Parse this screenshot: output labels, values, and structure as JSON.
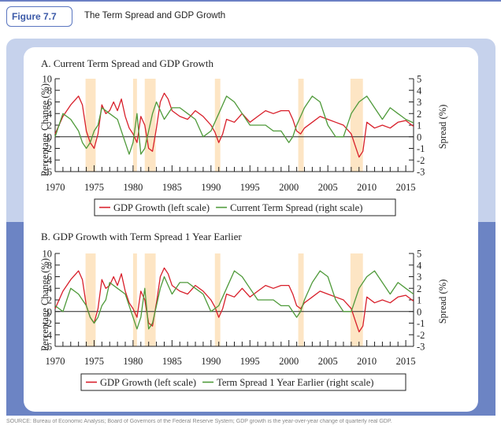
{
  "header": {
    "figure_label": "Figure 7.7",
    "title": "The Term Spread and GDP Growth"
  },
  "footer": {
    "source_text": "SOURCE: Bureau of Economic Analysis; Board of Governors of the Federal Reserve System; GDP growth is the year-over-year change of quarterly real GDP."
  },
  "colors": {
    "gdp": "#d81f2a",
    "spread": "#4f9a3a",
    "recession": "#fde5c4",
    "axis": "#222222"
  },
  "chart_data": [
    {
      "type": "line",
      "title": "A. Current Term Spread and GDP Growth",
      "ylabel_left": "Percentage Change (%)",
      "ylabel_right": "Spread (%)",
      "ylim_left": [
        -6,
        10
      ],
      "ylim_right": [
        -3,
        5
      ],
      "xlim": [
        1970,
        2016
      ],
      "x_ticks": [
        1970,
        1975,
        1980,
        1985,
        1990,
        1995,
        2000,
        2005,
        2010,
        2015
      ],
      "y_ticks_left": [
        -6,
        -4,
        -2,
        0,
        2,
        4,
        6,
        8,
        10
      ],
      "y_ticks_right": [
        -3,
        -2,
        -1,
        0,
        1,
        2,
        3,
        4,
        5
      ],
      "recessions": [
        [
          1973.9,
          1975.2
        ],
        [
          1980.0,
          1980.5
        ],
        [
          1981.5,
          1982.9
        ],
        [
          1990.5,
          1991.2
        ],
        [
          2001.2,
          2001.9
        ],
        [
          2007.9,
          2009.5
        ]
      ],
      "legend": [
        "GDP Growth (left scale)",
        "Current Term Spread (right scale)"
      ],
      "series": [
        {
          "name": "GDP Growth (left scale)",
          "axis": "left",
          "points": [
            [
              1970,
              0.5
            ],
            [
              1971,
              3.5
            ],
            [
              1972,
              5.5
            ],
            [
              1973,
              7.0
            ],
            [
              1973.5,
              5.5
            ],
            [
              1974,
              1.0
            ],
            [
              1974.5,
              -1.0
            ],
            [
              1975,
              -2.0
            ],
            [
              1975.5,
              0.5
            ],
            [
              1976,
              5.5
            ],
            [
              1976.5,
              4.0
            ],
            [
              1977,
              4.5
            ],
            [
              1977.5,
              6.0
            ],
            [
              1978,
              4.5
            ],
            [
              1978.5,
              6.5
            ],
            [
              1979,
              3.5
            ],
            [
              1979.5,
              1.5
            ],
            [
              1980,
              0.5
            ],
            [
              1980.5,
              -1.0
            ],
            [
              1981,
              3.5
            ],
            [
              1981.5,
              2.0
            ],
            [
              1982,
              -2.0
            ],
            [
              1982.5,
              -2.5
            ],
            [
              1983,
              1.5
            ],
            [
              1983.5,
              6.0
            ],
            [
              1984,
              7.5
            ],
            [
              1984.5,
              6.5
            ],
            [
              1985,
              4.5
            ],
            [
              1986,
              3.5
            ],
            [
              1987,
              3.0
            ],
            [
              1988,
              4.5
            ],
            [
              1989,
              3.5
            ],
            [
              1990,
              2.0
            ],
            [
              1990.5,
              0.8
            ],
            [
              1991,
              -1.0
            ],
            [
              1991.5,
              0.5
            ],
            [
              1992,
              3.0
            ],
            [
              1993,
              2.5
            ],
            [
              1994,
              4.0
            ],
            [
              1995,
              2.5
            ],
            [
              1996,
              3.5
            ],
            [
              1997,
              4.5
            ],
            [
              1998,
              4.0
            ],
            [
              1999,
              4.5
            ],
            [
              2000,
              4.5
            ],
            [
              2000.5,
              3.0
            ],
            [
              2001,
              1.0
            ],
            [
              2001.5,
              0.5
            ],
            [
              2002,
              1.5
            ],
            [
              2003,
              2.5
            ],
            [
              2004,
              3.5
            ],
            [
              2005,
              3.0
            ],
            [
              2006,
              2.5
            ],
            [
              2007,
              2.0
            ],
            [
              2008,
              0.5
            ],
            [
              2008.5,
              -1.5
            ],
            [
              2009,
              -3.5
            ],
            [
              2009.5,
              -2.5
            ],
            [
              2010,
              2.5
            ],
            [
              2011,
              1.5
            ],
            [
              2012,
              2.0
            ],
            [
              2013,
              1.5
            ],
            [
              2014,
              2.5
            ],
            [
              2015,
              2.8
            ],
            [
              2016,
              1.8
            ]
          ]
        },
        {
          "name": "Current Term Spread (right scale)",
          "axis": "right",
          "points": [
            [
              1970,
              0.0
            ],
            [
              1970.5,
              1.0
            ],
            [
              1971,
              2.0
            ],
            [
              1972,
              1.5
            ],
            [
              1973,
              0.5
            ],
            [
              1973.5,
              -0.5
            ],
            [
              1974,
              -1.0
            ],
            [
              1974.5,
              -0.5
            ],
            [
              1975,
              0.5
            ],
            [
              1975.5,
              1.0
            ],
            [
              1976,
              2.5
            ],
            [
              1977,
              2.0
            ],
            [
              1978,
              1.5
            ],
            [
              1978.5,
              0.5
            ],
            [
              1979,
              -0.5
            ],
            [
              1979.5,
              -1.5
            ],
            [
              1980,
              -0.5
            ],
            [
              1980.5,
              2.0
            ],
            [
              1981,
              -1.5
            ],
            [
              1981.5,
              -1.0
            ],
            [
              1982,
              0.5
            ],
            [
              1982.5,
              2.0
            ],
            [
              1983,
              3.0
            ],
            [
              1984,
              1.5
            ],
            [
              1985,
              2.5
            ],
            [
              1986,
              2.5
            ],
            [
              1987,
              2.0
            ],
            [
              1988,
              1.5
            ],
            [
              1989,
              0.0
            ],
            [
              1990,
              0.5
            ],
            [
              1991,
              2.0
            ],
            [
              1992,
              3.5
            ],
            [
              1993,
              3.0
            ],
            [
              1994,
              2.0
            ],
            [
              1995,
              1.0
            ],
            [
              1996,
              1.0
            ],
            [
              1997,
              1.0
            ],
            [
              1998,
              0.5
            ],
            [
              1999,
              0.5
            ],
            [
              2000,
              -0.5
            ],
            [
              2000.5,
              0.0
            ],
            [
              2001,
              1.0
            ],
            [
              2002,
              2.5
            ],
            [
              2003,
              3.5
            ],
            [
              2004,
              3.0
            ],
            [
              2005,
              1.0
            ],
            [
              2006,
              0.0
            ],
            [
              2007,
              0.0
            ],
            [
              2008,
              2.0
            ],
            [
              2009,
              3.0
            ],
            [
              2010,
              3.5
            ],
            [
              2011,
              2.5
            ],
            [
              2012,
              1.5
            ],
            [
              2013,
              2.5
            ],
            [
              2014,
              2.0
            ],
            [
              2015,
              1.5
            ],
            [
              2016,
              1.2
            ]
          ]
        }
      ]
    },
    {
      "type": "line",
      "title": "B. GDP Growth with Term Spread 1 Year Earlier",
      "ylabel_left": "Percentage Change (%)",
      "ylabel_right": "Spread (%)",
      "ylim_left": [
        -6,
        10
      ],
      "ylim_right": [
        -3,
        5
      ],
      "xlim": [
        1970,
        2016
      ],
      "x_ticks": [
        1970,
        1975,
        1980,
        1985,
        1990,
        1995,
        2000,
        2005,
        2010,
        2015
      ],
      "y_ticks_left": [
        -6,
        -4,
        -2,
        0,
        2,
        4,
        6,
        8,
        10
      ],
      "y_ticks_right": [
        -3,
        -2,
        -1,
        0,
        1,
        2,
        3,
        4,
        5
      ],
      "recessions": [
        [
          1973.9,
          1975.2
        ],
        [
          1980.0,
          1980.5
        ],
        [
          1981.5,
          1982.9
        ],
        [
          1990.5,
          1991.2
        ],
        [
          2001.2,
          2001.9
        ],
        [
          2007.9,
          2009.5
        ]
      ],
      "legend": [
        "GDP Growth (left scale)",
        "Term Spread 1 Year Earlier (right scale)"
      ],
      "series": [
        {
          "name": "GDP Growth (left scale)",
          "axis": "left",
          "points": [
            [
              1970,
              0.5
            ],
            [
              1971,
              3.5
            ],
            [
              1972,
              5.5
            ],
            [
              1973,
              7.0
            ],
            [
              1973.5,
              5.5
            ],
            [
              1974,
              1.0
            ],
            [
              1974.5,
              -1.0
            ],
            [
              1975,
              -2.0
            ],
            [
              1975.5,
              0.5
            ],
            [
              1976,
              5.5
            ],
            [
              1976.5,
              4.0
            ],
            [
              1977,
              4.5
            ],
            [
              1977.5,
              6.0
            ],
            [
              1978,
              4.5
            ],
            [
              1978.5,
              6.5
            ],
            [
              1979,
              3.5
            ],
            [
              1979.5,
              1.5
            ],
            [
              1980,
              0.5
            ],
            [
              1980.5,
              -1.0
            ],
            [
              1981,
              3.5
            ],
            [
              1981.5,
              2.0
            ],
            [
              1982,
              -2.0
            ],
            [
              1982.5,
              -2.5
            ],
            [
              1983,
              1.5
            ],
            [
              1983.5,
              6.0
            ],
            [
              1984,
              7.5
            ],
            [
              1984.5,
              6.5
            ],
            [
              1985,
              4.5
            ],
            [
              1986,
              3.5
            ],
            [
              1987,
              3.0
            ],
            [
              1988,
              4.5
            ],
            [
              1989,
              3.5
            ],
            [
              1990,
              2.0
            ],
            [
              1990.5,
              0.8
            ],
            [
              1991,
              -1.0
            ],
            [
              1991.5,
              0.5
            ],
            [
              1992,
              3.0
            ],
            [
              1993,
              2.5
            ],
            [
              1994,
              4.0
            ],
            [
              1995,
              2.5
            ],
            [
              1996,
              3.5
            ],
            [
              1997,
              4.5
            ],
            [
              1998,
              4.0
            ],
            [
              1999,
              4.5
            ],
            [
              2000,
              4.5
            ],
            [
              2000.5,
              3.0
            ],
            [
              2001,
              1.0
            ],
            [
              2001.5,
              0.5
            ],
            [
              2002,
              1.5
            ],
            [
              2003,
              2.5
            ],
            [
              2004,
              3.5
            ],
            [
              2005,
              3.0
            ],
            [
              2006,
              2.5
            ],
            [
              2007,
              2.0
            ],
            [
              2008,
              0.5
            ],
            [
              2008.5,
              -1.5
            ],
            [
              2009,
              -3.5
            ],
            [
              2009.5,
              -2.5
            ],
            [
              2010,
              2.5
            ],
            [
              2011,
              1.5
            ],
            [
              2012,
              2.0
            ],
            [
              2013,
              1.5
            ],
            [
              2014,
              2.5
            ],
            [
              2015,
              2.8
            ],
            [
              2016,
              1.8
            ]
          ]
        },
        {
          "name": "Term Spread 1 Year Earlier (right scale)",
          "axis": "right",
          "points": [
            [
              1970,
              0.5
            ],
            [
              1971,
              0.0
            ],
            [
              1971.5,
              1.0
            ],
            [
              1972,
              2.0
            ],
            [
              1973,
              1.5
            ],
            [
              1974,
              0.5
            ],
            [
              1974.5,
              -0.5
            ],
            [
              1975,
              -1.0
            ],
            [
              1975.5,
              -0.5
            ],
            [
              1976,
              0.5
            ],
            [
              1976.5,
              1.0
            ],
            [
              1977,
              2.5
            ],
            [
              1978,
              2.0
            ],
            [
              1979,
              1.5
            ],
            [
              1979.5,
              0.5
            ],
            [
              1980,
              -0.5
            ],
            [
              1980.5,
              -1.5
            ],
            [
              1981,
              -0.5
            ],
            [
              1981.5,
              2.0
            ],
            [
              1982,
              -1.5
            ],
            [
              1982.5,
              -1.0
            ],
            [
              1983,
              0.5
            ],
            [
              1983.5,
              2.0
            ],
            [
              1984,
              3.0
            ],
            [
              1985,
              1.5
            ],
            [
              1986,
              2.5
            ],
            [
              1987,
              2.5
            ],
            [
              1988,
              2.0
            ],
            [
              1989,
              1.5
            ],
            [
              1990,
              0.0
            ],
            [
              1991,
              0.5
            ],
            [
              1992,
              2.0
            ],
            [
              1993,
              3.5
            ],
            [
              1994,
              3.0
            ],
            [
              1995,
              2.0
            ],
            [
              1996,
              1.0
            ],
            [
              1997,
              1.0
            ],
            [
              1998,
              1.0
            ],
            [
              1999,
              0.5
            ],
            [
              2000,
              0.5
            ],
            [
              2001,
              -0.5
            ],
            [
              2001.5,
              0.0
            ],
            [
              2002,
              1.0
            ],
            [
              2003,
              2.5
            ],
            [
              2004,
              3.5
            ],
            [
              2005,
              3.0
            ],
            [
              2006,
              1.0
            ],
            [
              2007,
              0.0
            ],
            [
              2008,
              0.0
            ],
            [
              2009,
              2.0
            ],
            [
              2010,
              3.0
            ],
            [
              2011,
              3.5
            ],
            [
              2012,
              2.5
            ],
            [
              2013,
              1.5
            ],
            [
              2014,
              2.5
            ],
            [
              2015,
              2.0
            ],
            [
              2016,
              1.5
            ]
          ]
        }
      ]
    }
  ]
}
